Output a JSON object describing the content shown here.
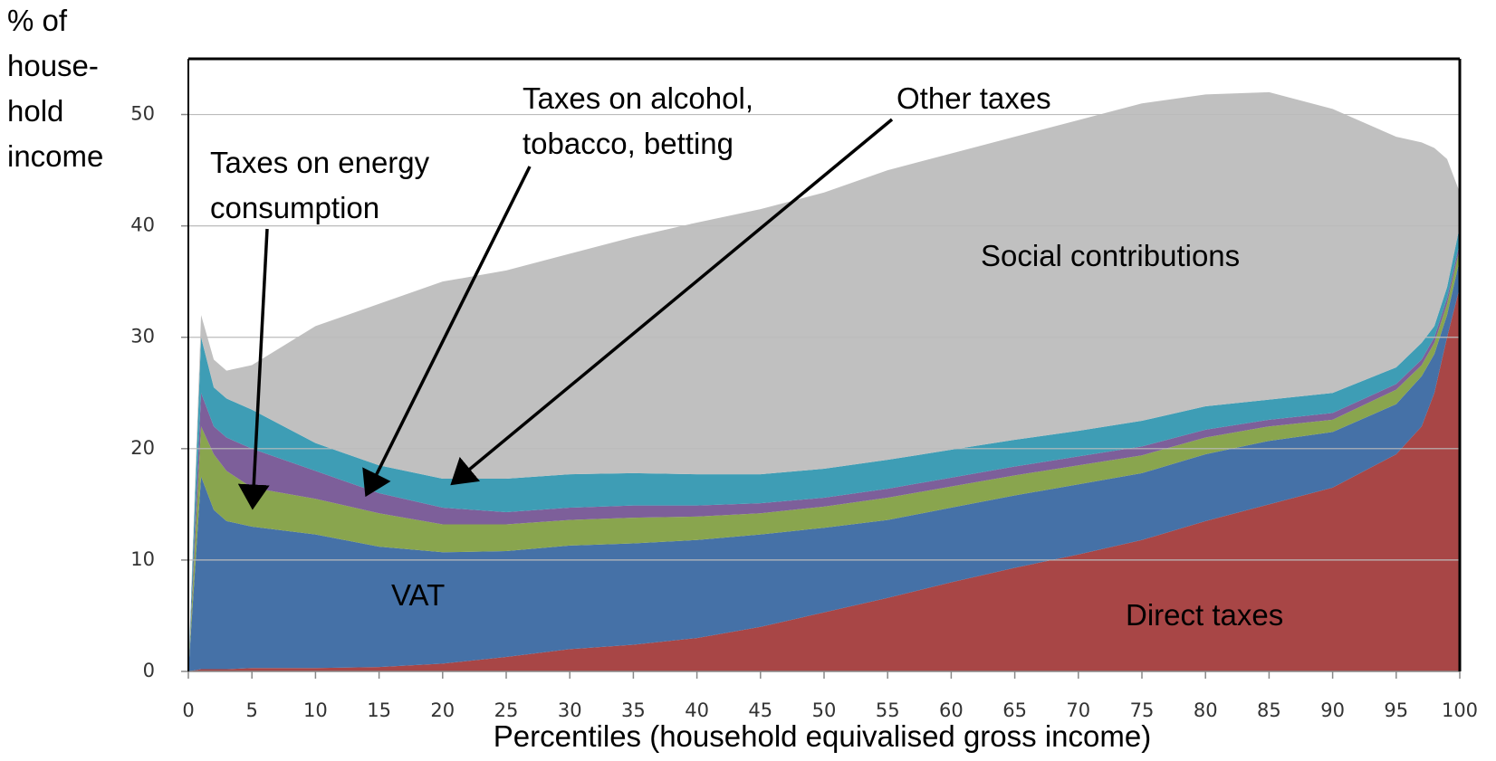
{
  "chart_data": {
    "type": "stacked_area",
    "y_label": [
      "% of",
      "house-",
      "hold",
      "income"
    ],
    "x_label": "Percentiles (household equivalised gross income)",
    "x": [
      0,
      1,
      2,
      3,
      5,
      10,
      15,
      20,
      25,
      30,
      35,
      40,
      45,
      50,
      55,
      60,
      65,
      70,
      75,
      80,
      85,
      90,
      95,
      97,
      98,
      99,
      100
    ],
    "series": [
      {
        "name": "Direct taxes",
        "color": "#a84646",
        "values": [
          0,
          0.2,
          0.2,
          0.2,
          0.3,
          0.3,
          0.4,
          0.7,
          1.3,
          2,
          2.4,
          3,
          4,
          5.3,
          6.6,
          8,
          9.3,
          10.5,
          11.8,
          13.5,
          15,
          16.5,
          19.5,
          22,
          25,
          30,
          34.5
        ]
      },
      {
        "name": "VAT",
        "color": "#4571a7",
        "values": [
          0,
          17.3,
          14.3,
          13.3,
          12.7,
          12,
          10.8,
          10,
          9.5,
          9.3,
          9.1,
          8.8,
          8.3,
          7.6,
          7,
          6.7,
          6.5,
          6.3,
          6,
          6,
          5.7,
          5,
          4.5,
          4.5,
          3.5,
          2,
          2.5
        ]
      },
      {
        "name": "Taxes on energy consumption",
        "color": "#89a54e",
        "values": [
          0,
          4.5,
          5,
          4.5,
          3.5,
          3.2,
          3,
          2.5,
          2.4,
          2.3,
          2.3,
          2.1,
          1.9,
          1.9,
          2,
          1.9,
          1.8,
          1.7,
          1.6,
          1.5,
          1.3,
          1.1,
          1.3,
          1,
          1,
          1,
          1
        ]
      },
      {
        "name": "Taxes on alcohol, tobacco, betting",
        "color": "#7d5f9a",
        "values": [
          0,
          3,
          2.5,
          3,
          3.5,
          2.5,
          1.8,
          1.5,
          1.1,
          1.1,
          1.1,
          1,
          0.9,
          0.8,
          0.8,
          0.8,
          0.8,
          0.8,
          0.8,
          0.7,
          0.6,
          0.6,
          0.5,
          0.5,
          0.5,
          0.5,
          0.5
        ]
      },
      {
        "name": "Other taxes",
        "color": "#3e9db5",
        "values": [
          0,
          5,
          3.5,
          3.5,
          3.5,
          2.5,
          2.5,
          2.6,
          3,
          3,
          2.9,
          2.8,
          2.6,
          2.6,
          2.6,
          2.5,
          2.4,
          2.3,
          2.3,
          2.1,
          1.8,
          1.8,
          1.5,
          1.5,
          1,
          1,
          1.5
        ]
      },
      {
        "name": "Social contributions",
        "color": "#c0c0c0",
        "values": [
          0,
          2,
          2.5,
          2.5,
          4,
          10.5,
          14.5,
          17.7,
          18.7,
          19.8,
          21.2,
          22.6,
          23.8,
          24.8,
          26,
          26.6,
          27.2,
          27.9,
          28.5,
          28,
          27.6,
          25.5,
          20.7,
          18,
          16,
          11.5,
          3
        ]
      }
    ],
    "xlim": [
      0,
      100
    ],
    "xticks": [
      0,
      5,
      10,
      15,
      20,
      25,
      30,
      35,
      40,
      45,
      50,
      55,
      60,
      65,
      70,
      75,
      80,
      85,
      90,
      95,
      100
    ],
    "ylim": [
      0,
      55
    ],
    "yticks": [
      0,
      10,
      20,
      30,
      40,
      50
    ],
    "grid": true
  }
}
